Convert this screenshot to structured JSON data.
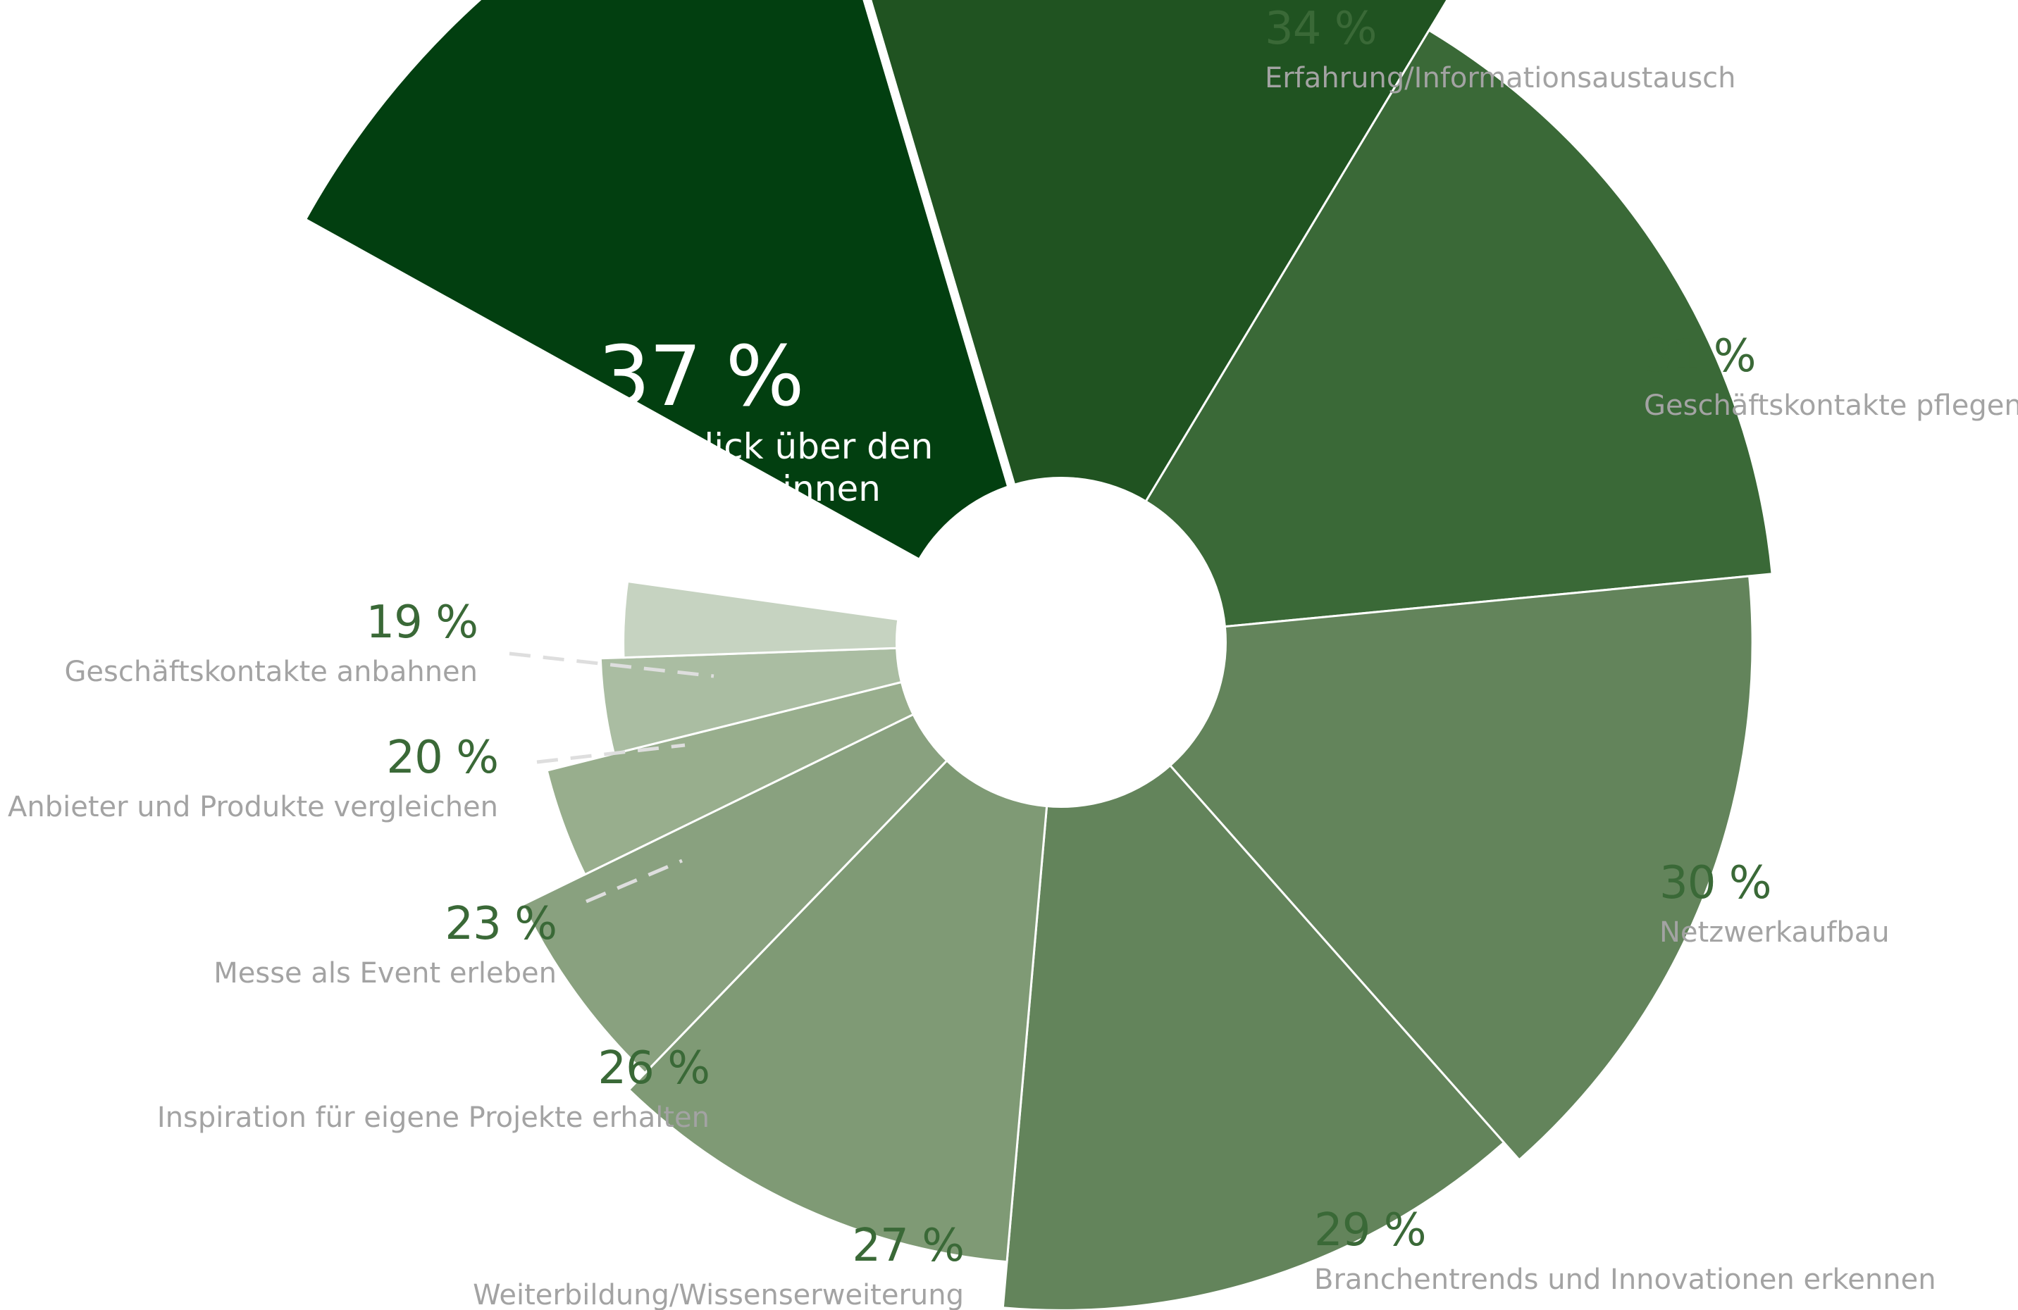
{
  "chart_data": {
    "type": "pie",
    "variant": "polar-area-donut",
    "unit": "%",
    "title": "",
    "slices": [
      {
        "label": "Überblick über den Markt gewinnen",
        "label_lines": [
          "Überblick über den",
          "Markt gewinnen"
        ],
        "value": 37,
        "display": "37 %",
        "color": "#023f10",
        "highlight": true
      },
      {
        "label": "Erfahrung/Informationsaustausch",
        "label_lines": [
          "Erfahrung/Informationsaustausch"
        ],
        "value": 34,
        "display": "34 %",
        "color": "#205321"
      },
      {
        "label": "Geschäftskontakte pflegen",
        "label_lines": [
          "Geschäftskontakte pflegen"
        ],
        "value": 31,
        "display": "31 %",
        "color": "#3a6937"
      },
      {
        "label": "Netzwerkaufbau",
        "label_lines": [
          "Netzwerkaufbau"
        ],
        "value": 30,
        "display": "30 %",
        "color": "#63845b"
      },
      {
        "label": "Branchentrends und Innovationen erkennen",
        "label_lines": [
          "Branchentrends und Innovationen erkennen"
        ],
        "value": 29,
        "display": "29 %",
        "color": "#63845b"
      },
      {
        "label": "Weiterbildung/Wissenserweiterung",
        "label_lines": [
          "Weiterbildung/Wissenserweiterung"
        ],
        "value": 27,
        "display": "27 %",
        "color": "#7f9a75"
      },
      {
        "label": "Inspiration für eigene Projekte erhalten",
        "label_lines": [
          "Inspiration für eigene Projekte erhalten"
        ],
        "value": 26,
        "display": "26 %",
        "color": "#89a17f"
      },
      {
        "label": "Messe als Event erleben",
        "label_lines": [
          "Messe als Event erleben"
        ],
        "value": 23,
        "display": "23 %",
        "color": "#98ae8d"
      },
      {
        "label": "Anbieter und Produkte vergleichen",
        "label_lines": [
          "Anbieter und Produkte vergleichen"
        ],
        "value": 20,
        "display": "20 %",
        "color": "#aabda2"
      },
      {
        "label": "Geschäftskontakte anbahnen",
        "label_lines": [
          "Geschäftskontakte anbahnen"
        ],
        "value": 19,
        "display": "19 %",
        "color": "#c6d3c1"
      }
    ],
    "label_color": "#a3a3a3",
    "value_color": "#3a6937",
    "connector_color": "#dedede",
    "legend": "none",
    "grid": false
  }
}
